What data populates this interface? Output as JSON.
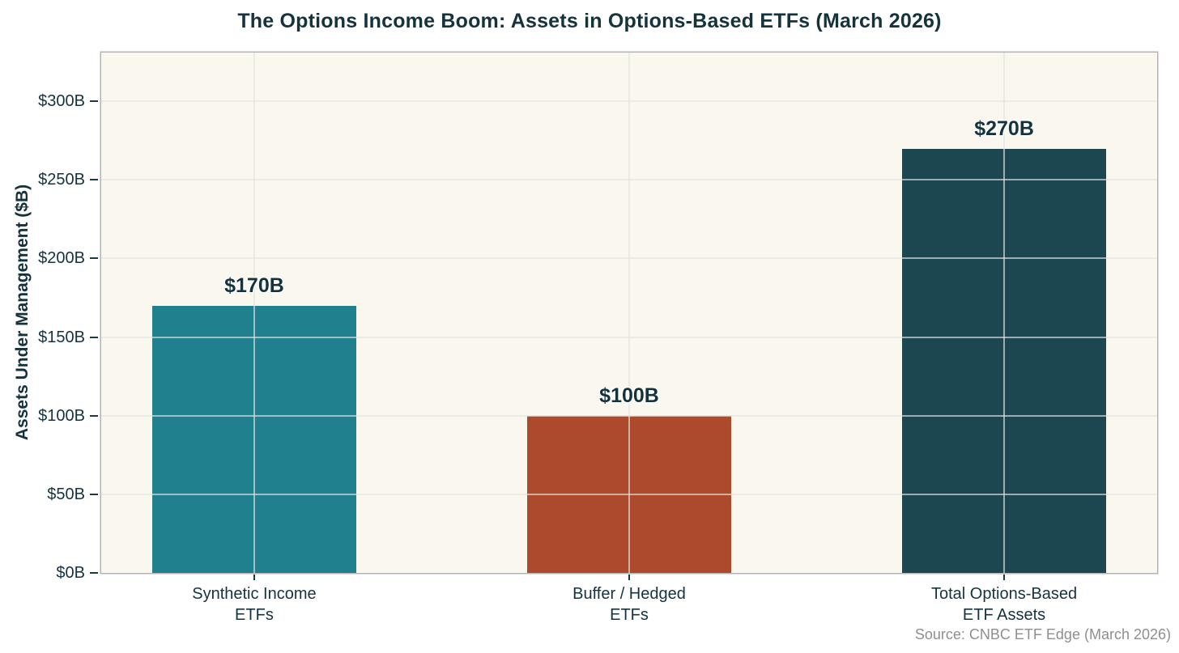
{
  "title": "The Options Income Boom: Assets in Options-Based ETFs (March 2026)",
  "source_note": "Source: CNBC ETF Edge (March 2026)",
  "palette": {
    "page_bg": "#FFFFFF",
    "plot_bg": "#FAF7EF",
    "spine": "#B3B3B3",
    "grid": "#E4E4DE",
    "grid_opacity": 0.65,
    "title_text": "#14333D",
    "tick_text": "#15333E",
    "tick_mark": "#1A3A44",
    "source_text": "#8F8F8F"
  },
  "chart_data": {
    "type": "bar",
    "title": "The Options Income Boom: Assets in Options-Based ETFs (March 2026)",
    "categories": [
      "Synthetic Income\nETFs",
      "Buffer / Hedged\nETFs",
      "Total Options-Based\nETF Assets"
    ],
    "values": [
      170,
      100,
      270
    ],
    "bar_value_labels": [
      "$170B",
      "$100B",
      "$270B"
    ],
    "bar_colors": [
      "#20808D",
      "#AC4A2B",
      "#1D4750"
    ],
    "bar_names": [
      "synthetic-income-etfs",
      "buffer-hedged-etfs",
      "total-options-based-etf-assets"
    ],
    "xlabel": "",
    "ylabel": "Assets Under Management ($B)",
    "ylim": [
      0,
      331
    ],
    "yticks": [
      0,
      50,
      100,
      150,
      200,
      250,
      300
    ],
    "ytick_labels": [
      "$0B",
      "$50B",
      "$100B",
      "$150B",
      "$200B",
      "$250B",
      "$300B"
    ],
    "grid": true,
    "legend_position": "none"
  }
}
